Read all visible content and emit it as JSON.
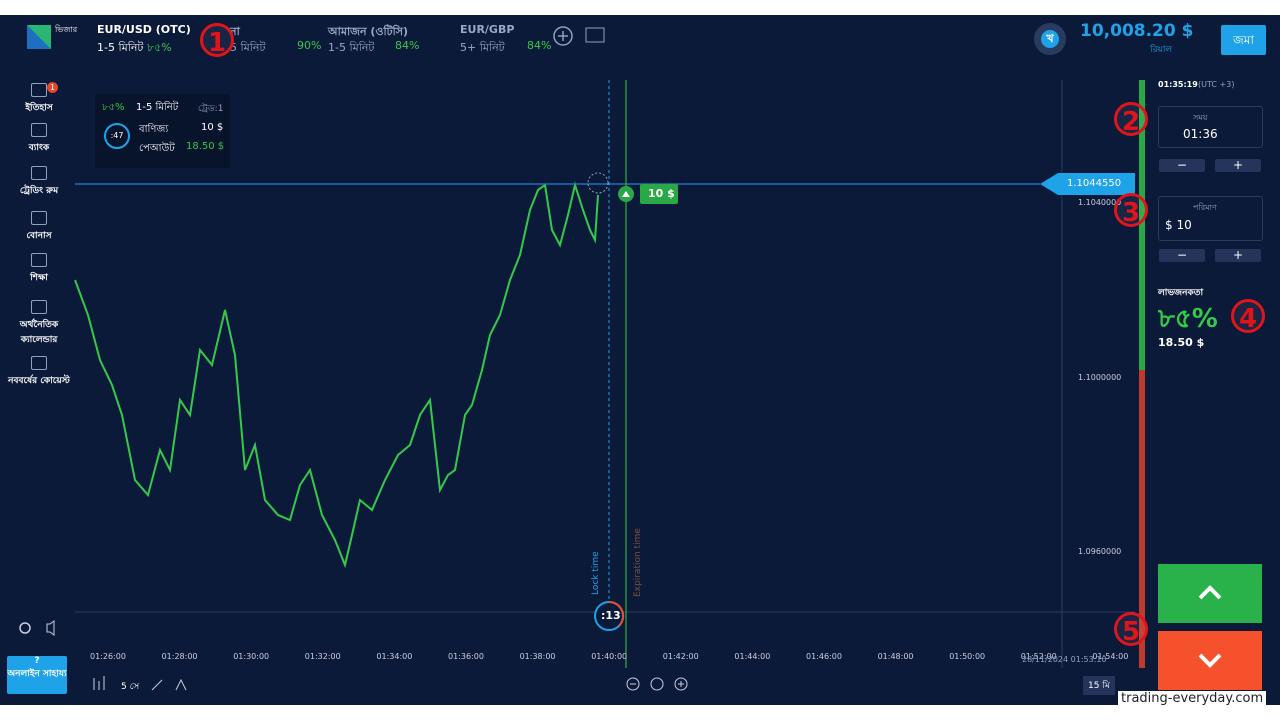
{
  "header": {
    "logo_text": "ভিজার",
    "assets": [
      {
        "name": "EUR/USD (OTC)",
        "time": "1-5 মিনিট",
        "payout": "৮৫%"
      },
      {
        "name": "না",
        "time": "5 মিনিট",
        "payout": "90%"
      },
      {
        "name": "আমাজন (ওটিসি)",
        "time": "1-5 মিনিট",
        "payout": "84%"
      },
      {
        "name": "EUR/GBP",
        "time": "5+ মিনিট",
        "payout": "84%"
      }
    ],
    "avatar": "খ",
    "balance": "10,008.20 $",
    "account": "রিয়াল",
    "deposit": "জমা"
  },
  "sidebar": {
    "history_badge": "1",
    "items": [
      "ইতিহাস",
      "ব্যাংক",
      "ট্রেডিং রুম",
      "বোনাস",
      "শিক্ষা",
      "অর্থনৈতিক ক্যালেন্ডার",
      "নববর্ষের কোয়েস্ট"
    ],
    "help": "অনলাইন সাহায্য"
  },
  "trade_card": {
    "payout": "৮৫%",
    "time": "1-5 মিনিট",
    "trades": "ট্রেড:1",
    "timer": ":47",
    "invest_label": "বাণিজ্য",
    "invest": "10 $",
    "payout_label": "পেআউট",
    "payout_value": "18.50 $"
  },
  "chart": {
    "current_price": "1.1044550",
    "price_ticks": [
      "1.1040000",
      "1.1000000",
      "1.0960000"
    ],
    "time_ticks": [
      "01:26:00",
      "01:28:00",
      "01:30:00",
      "01:32:00",
      "01:34:00",
      "01:36:00",
      "01:38:00",
      "01:40:00",
      "01:42:00",
      "01:44:00",
      "01:46:00",
      "01:48:00",
      "01:50:00",
      "01:52:00",
      "01:54:00"
    ],
    "lock_label": "Lock time",
    "expiration_label": "Expiration time",
    "countdown": ":13",
    "bet_tag": "10 $",
    "timestamp": "28/11/2024 01:53:10",
    "candle_period": "5 সে",
    "zoom": "15 মি"
  },
  "panel": {
    "clock": "01:35:19",
    "timezone": "(UTC +3)",
    "time_label": "সময়",
    "time_value": "01:36",
    "amount_label": "পরিমাণ",
    "amount_value": "$ 10",
    "profit_label": "লাভজনকতা",
    "profit_percent": "৮৫%",
    "profit_value": "18.50 $"
  },
  "annotations": [
    "1",
    "2",
    "3",
    "4",
    "5"
  ],
  "watermark": "trading-everyday.com"
}
